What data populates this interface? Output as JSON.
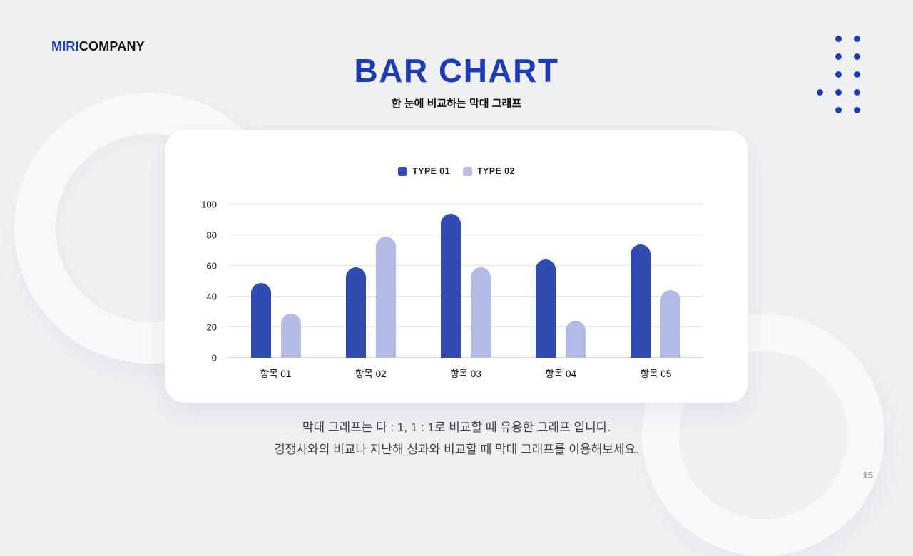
{
  "page": {
    "background_color": "#eef0f2",
    "accent_color": "#1d3cb3",
    "page_number": "15"
  },
  "logo": {
    "part1": "MIRI",
    "part2": "COMPANY"
  },
  "header": {
    "title": "BAR CHART",
    "subtitle": "한 눈에 비교하는 막대 그래프"
  },
  "footer": {
    "line1": "막대 그래프는 다 : 1, 1 : 1로 비교할 때 유용한 그래프 입니다.",
    "line2": "경쟁사와의 비교나 지난해 성과와 비교할 때 막대 그래프를 이용해보세요."
  },
  "chart_data": {
    "type": "bar",
    "title": "",
    "xlabel": "",
    "ylabel": "",
    "categories": [
      "항목 01",
      "항목 02",
      "항목 03",
      "항목 04",
      "항목 05"
    ],
    "series": [
      {
        "name": "TYPE 01",
        "color": "#2e4cb2",
        "values": [
          49,
          59,
          94,
          64,
          74
        ]
      },
      {
        "name": "TYPE 02",
        "color": "#b2bbe5",
        "values": [
          29,
          79,
          59,
          24,
          44
        ]
      }
    ],
    "ylim": [
      0,
      100
    ],
    "yticks": [
      0,
      20,
      40,
      60,
      80,
      100
    ],
    "grid": true,
    "legend_position": "top"
  }
}
